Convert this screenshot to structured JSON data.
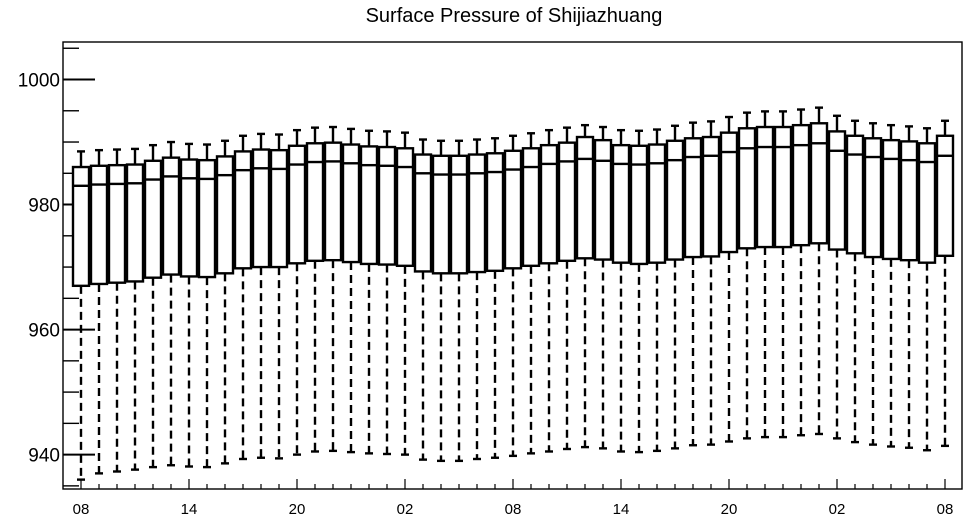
{
  "chart_data": {
    "type": "boxplot",
    "title": "Surface Pressure of Shijiazhuang",
    "xlabel": "",
    "ylabel": "",
    "ylim": [
      934.5,
      1006
    ],
    "y_ticks": [
      940,
      960,
      980,
      1000
    ],
    "y_minor_step": 5,
    "x_tick_labels": [
      "08",
      "14",
      "20",
      "02",
      "08",
      "14",
      "20",
      "02",
      "08"
    ],
    "x_tick_positions": [
      0,
      6,
      12,
      18,
      24,
      30,
      36,
      42,
      48
    ],
    "grid": false,
    "legend": "none",
    "colors": {
      "stroke": "#000000",
      "box_fill": "#ffffff",
      "background": "#ffffff"
    },
    "series": [
      {
        "values": [
          {
            "x": 0,
            "min": 936.0,
            "q1": 967.0,
            "median": 983.0,
            "q3": 986.0,
            "max": 988.5
          },
          {
            "x": 1,
            "min": 937.0,
            "q1": 967.3,
            "median": 983.2,
            "q3": 986.2,
            "max": 988.7
          },
          {
            "x": 2,
            "min": 937.3,
            "q1": 967.5,
            "median": 983.3,
            "q3": 986.3,
            "max": 988.8
          },
          {
            "x": 3,
            "min": 937.6,
            "q1": 967.7,
            "median": 983.4,
            "q3": 986.4,
            "max": 988.9
          },
          {
            "x": 4,
            "min": 938.0,
            "q1": 968.3,
            "median": 984.0,
            "q3": 987.0,
            "max": 989.5
          },
          {
            "x": 5,
            "min": 938.3,
            "q1": 968.8,
            "median": 984.5,
            "q3": 987.5,
            "max": 990.0
          },
          {
            "x": 6,
            "min": 938.1,
            "q1": 968.5,
            "median": 984.2,
            "q3": 987.2,
            "max": 989.7
          },
          {
            "x": 7,
            "min": 938.0,
            "q1": 968.4,
            "median": 984.1,
            "q3": 987.1,
            "max": 989.6
          },
          {
            "x": 8,
            "min": 938.6,
            "q1": 969.0,
            "median": 984.7,
            "q3": 987.7,
            "max": 990.2
          },
          {
            "x": 9,
            "min": 939.3,
            "q1": 969.8,
            "median": 985.5,
            "q3": 988.5,
            "max": 991.0
          },
          {
            "x": 10,
            "min": 939.5,
            "q1": 970.0,
            "median": 985.8,
            "q3": 988.8,
            "max": 991.3
          },
          {
            "x": 11,
            "min": 939.4,
            "q1": 970.0,
            "median": 985.7,
            "q3": 988.7,
            "max": 991.2
          },
          {
            "x": 12,
            "min": 940.0,
            "q1": 970.6,
            "median": 986.4,
            "q3": 989.4,
            "max": 991.9
          },
          {
            "x": 13,
            "min": 940.5,
            "q1": 971.0,
            "median": 986.8,
            "q3": 989.8,
            "max": 992.3
          },
          {
            "x": 14,
            "min": 940.6,
            "q1": 971.1,
            "median": 986.9,
            "q3": 989.9,
            "max": 992.4
          },
          {
            "x": 15,
            "min": 940.4,
            "q1": 970.8,
            "median": 986.6,
            "q3": 989.6,
            "max": 992.1
          },
          {
            "x": 16,
            "min": 940.2,
            "q1": 970.5,
            "median": 986.3,
            "q3": 989.3,
            "max": 991.8
          },
          {
            "x": 17,
            "min": 940.1,
            "q1": 970.4,
            "median": 986.2,
            "q3": 989.2,
            "max": 991.7
          },
          {
            "x": 18,
            "min": 940.0,
            "q1": 970.2,
            "median": 986.0,
            "q3": 989.0,
            "max": 991.5
          },
          {
            "x": 19,
            "min": 939.2,
            "q1": 969.3,
            "median": 985.0,
            "q3": 988.0,
            "max": 990.4
          },
          {
            "x": 20,
            "min": 939.0,
            "q1": 969.0,
            "median": 984.8,
            "q3": 987.8,
            "max": 990.2
          },
          {
            "x": 21,
            "min": 939.0,
            "q1": 969.0,
            "median": 984.8,
            "q3": 987.8,
            "max": 990.2
          },
          {
            "x": 22,
            "min": 939.3,
            "q1": 969.2,
            "median": 985.0,
            "q3": 988.0,
            "max": 990.4
          },
          {
            "x": 23,
            "min": 939.5,
            "q1": 969.4,
            "median": 985.2,
            "q3": 988.2,
            "max": 990.6
          },
          {
            "x": 24,
            "min": 939.8,
            "q1": 969.8,
            "median": 985.6,
            "q3": 988.6,
            "max": 991.0
          },
          {
            "x": 25,
            "min": 940.2,
            "q1": 970.2,
            "median": 986.0,
            "q3": 989.0,
            "max": 991.4
          },
          {
            "x": 26,
            "min": 940.5,
            "q1": 970.6,
            "median": 986.5,
            "q3": 989.5,
            "max": 991.9
          },
          {
            "x": 27,
            "min": 940.9,
            "q1": 971.0,
            "median": 986.9,
            "q3": 989.9,
            "max": 992.3
          },
          {
            "x": 28,
            "min": 941.2,
            "q1": 971.4,
            "median": 987.3,
            "q3": 990.8,
            "max": 992.7
          },
          {
            "x": 29,
            "min": 941.0,
            "q1": 971.2,
            "median": 987.0,
            "q3": 990.3,
            "max": 992.4
          },
          {
            "x": 30,
            "min": 940.5,
            "q1": 970.7,
            "median": 986.5,
            "q3": 989.5,
            "max": 991.9
          },
          {
            "x": 31,
            "min": 940.4,
            "q1": 970.5,
            "median": 986.4,
            "q3": 989.4,
            "max": 991.8
          },
          {
            "x": 32,
            "min": 940.6,
            "q1": 970.7,
            "median": 986.6,
            "q3": 989.6,
            "max": 992.0
          },
          {
            "x": 33,
            "min": 941.0,
            "q1": 971.2,
            "median": 987.1,
            "q3": 990.2,
            "max": 992.6
          },
          {
            "x": 34,
            "min": 941.5,
            "q1": 971.6,
            "median": 987.6,
            "q3": 990.6,
            "max": 993.1
          },
          {
            "x": 35,
            "min": 941.6,
            "q1": 971.7,
            "median": 987.8,
            "q3": 990.8,
            "max": 993.3
          },
          {
            "x": 36,
            "min": 942.1,
            "q1": 972.4,
            "median": 988.4,
            "q3": 991.5,
            "max": 994.0
          },
          {
            "x": 37,
            "min": 942.6,
            "q1": 973.0,
            "median": 989.0,
            "q3": 992.2,
            "max": 994.7
          },
          {
            "x": 38,
            "min": 942.8,
            "q1": 973.2,
            "median": 989.2,
            "q3": 992.4,
            "max": 994.9
          },
          {
            "x": 39,
            "min": 942.8,
            "q1": 973.2,
            "median": 989.2,
            "q3": 992.4,
            "max": 994.9
          },
          {
            "x": 40,
            "min": 943.1,
            "q1": 973.5,
            "median": 989.5,
            "q3": 992.7,
            "max": 995.2
          },
          {
            "x": 41,
            "min": 943.3,
            "q1": 973.8,
            "median": 989.8,
            "q3": 993.0,
            "max": 995.5
          },
          {
            "x": 42,
            "min": 942.6,
            "q1": 972.8,
            "median": 988.6,
            "q3": 991.7,
            "max": 994.2
          },
          {
            "x": 43,
            "min": 942.0,
            "q1": 972.2,
            "median": 988.0,
            "q3": 991.0,
            "max": 993.4
          },
          {
            "x": 44,
            "min": 941.6,
            "q1": 971.6,
            "median": 987.6,
            "q3": 990.6,
            "max": 993.0
          },
          {
            "x": 45,
            "min": 941.3,
            "q1": 971.3,
            "median": 987.3,
            "q3": 990.3,
            "max": 992.7
          },
          {
            "x": 46,
            "min": 941.1,
            "q1": 971.1,
            "median": 987.1,
            "q3": 990.1,
            "max": 992.5
          },
          {
            "x": 47,
            "min": 940.7,
            "q1": 970.7,
            "median": 986.8,
            "q3": 989.8,
            "max": 992.2
          },
          {
            "x": 48,
            "min": 941.4,
            "q1": 971.8,
            "median": 987.8,
            "q3": 991.0,
            "max": 993.4
          }
        ]
      }
    ]
  }
}
